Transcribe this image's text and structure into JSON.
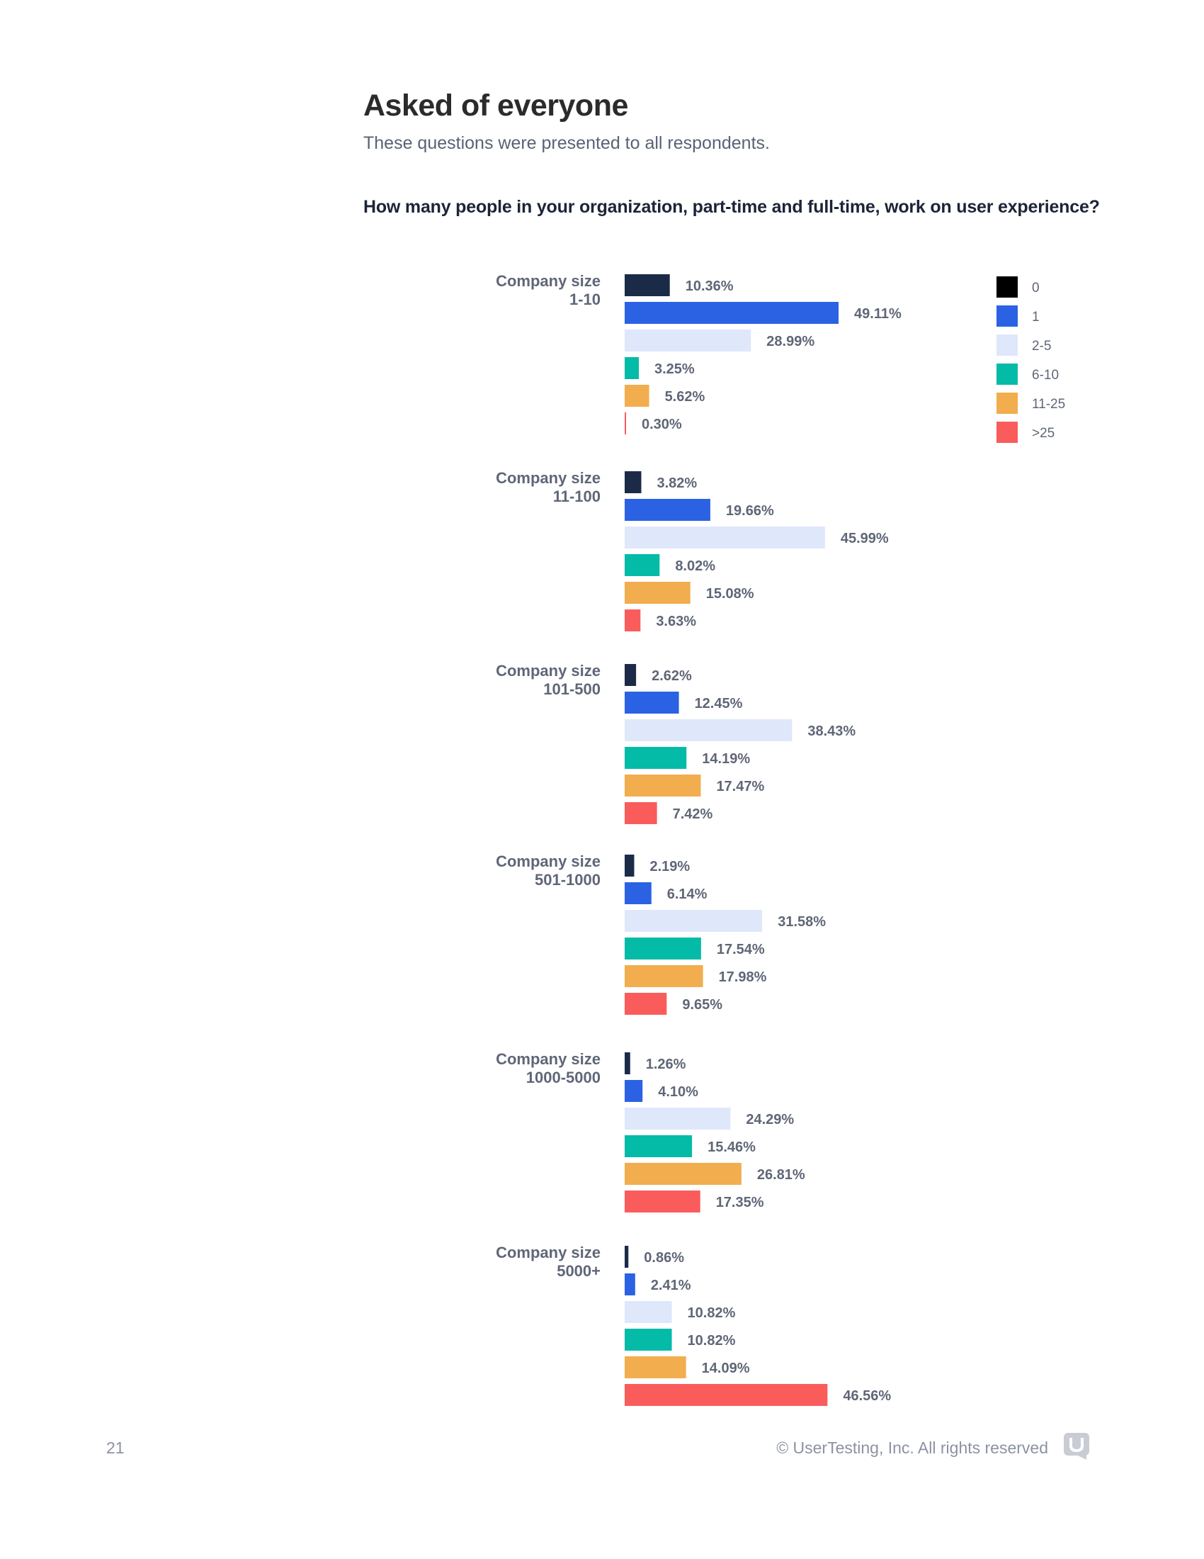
{
  "page": {
    "heading": "Asked of everyone",
    "subheading": "These questions were presented to all respondents.",
    "question": "How many people in your organization, part-time and full-time, work on user experience?",
    "page_number": "21",
    "copyright": "© UserTesting, Inc. All rights reserved",
    "logo_icon": "usertesting-logo-icon"
  },
  "chart_data": {
    "type": "bar",
    "orientation": "horizontal",
    "title": "How many people in your organization, part-time and full-time, work on user experience?",
    "xlim": [
      0,
      50
    ],
    "value_suffix": "%",
    "legend": {
      "placement": "top-right",
      "entries": [
        "0",
        "1",
        "2-5",
        "6-10",
        "11-25",
        ">25"
      ]
    },
    "colors": {
      "0": "#1b2b47",
      "1": "#2a62e3",
      "2-5": "#dfe7fa",
      "6-10": "#04bba7",
      "11-25": "#f2ad4e",
      ">25": "#fa5c5c",
      "legend_0": "#000000"
    },
    "groups": [
      {
        "label_line1": "Company size",
        "label_line2": "1-10",
        "values": [
          10.36,
          49.11,
          28.99,
          3.25,
          5.62,
          0.3
        ],
        "labels": [
          "10.36%",
          "49.11%",
          "28.99%",
          "3.25%",
          "5.62%",
          "0.30%"
        ]
      },
      {
        "label_line1": "Company size",
        "label_line2": "11-100",
        "values": [
          3.82,
          19.66,
          45.99,
          8.02,
          15.08,
          3.63
        ],
        "labels": [
          "3.82%",
          "19.66%",
          "45.99%",
          "8.02%",
          "15.08%",
          "3.63%"
        ]
      },
      {
        "label_line1": "Company size",
        "label_line2": "101-500",
        "values": [
          2.62,
          12.45,
          38.43,
          14.19,
          17.47,
          7.42
        ],
        "labels": [
          "2.62%",
          "12.45%",
          "38.43%",
          "14.19%",
          "17.47%",
          "7.42%"
        ]
      },
      {
        "label_line1": "Company size",
        "label_line2": "501-1000",
        "values": [
          2.19,
          6.14,
          31.58,
          17.54,
          17.98,
          9.65
        ],
        "labels": [
          "2.19%",
          "6.14%",
          "31.58%",
          "17.54%",
          "17.98%",
          "9.65%"
        ]
      },
      {
        "label_line1": "Company size",
        "label_line2": "1000-5000",
        "values": [
          1.26,
          4.1,
          24.29,
          15.46,
          26.81,
          17.35
        ],
        "labels": [
          "1.26%",
          "4.10%",
          "24.29%",
          "15.46%",
          "26.81%",
          "17.35%"
        ]
      },
      {
        "label_line1": "Company size",
        "label_line2": "5000+",
        "values": [
          0.86,
          2.41,
          10.82,
          10.82,
          14.09,
          46.56
        ],
        "labels": [
          "0.86%",
          "2.41%",
          "10.82%",
          "10.82%",
          "14.09%",
          "46.56%"
        ]
      }
    ]
  }
}
